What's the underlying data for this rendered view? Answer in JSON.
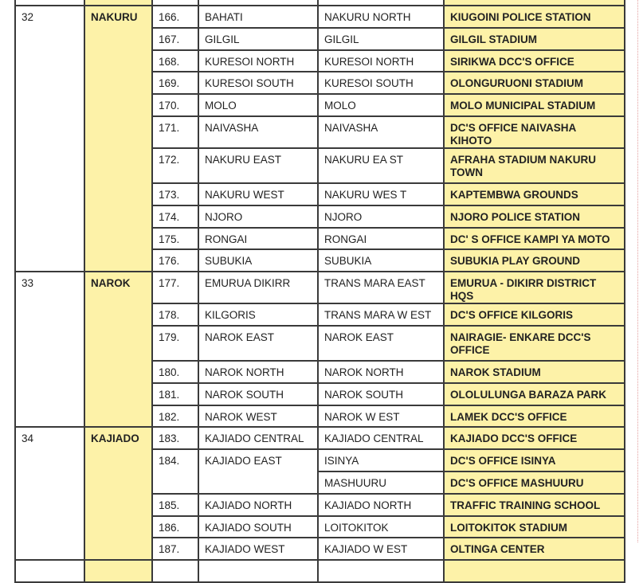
{
  "colors": {
    "highlight": "#fdf2a8",
    "border": "#3a3a3a"
  },
  "counties": [
    {
      "code": "32",
      "name": "NAKURU",
      "rows": [
        {
          "no": "166.",
          "constituency": "BAHATI",
          "sub": [
            {
              "name": "NAKURU NORTH",
              "centre": "KIUGOINI POLICE STATION"
            }
          ]
        },
        {
          "no": "167.",
          "constituency": "GILGIL",
          "sub": [
            {
              "name": "GILGIL",
              "centre": "GILGIL STADIUM"
            }
          ]
        },
        {
          "no": "168.",
          "constituency": "KURESOI NORTH",
          "sub": [
            {
              "name": "KURESOI NORTH",
              "centre": "SIRIKWA DCC'S OFFICE"
            }
          ]
        },
        {
          "no": "169.",
          "constituency": "KURESOI SOUTH",
          "sub": [
            {
              "name": "KURESOI SOUTH",
              "centre": "OLONGURUONI STADIUM"
            }
          ]
        },
        {
          "no": "170.",
          "constituency": "MOLO",
          "sub": [
            {
              "name": "MOLO",
              "centre": "MOLO MUNICIPAL STADIUM"
            }
          ]
        },
        {
          "no": "171.",
          "constituency": "NAIVASHA",
          "sub": [
            {
              "name": "NAIVASHA",
              "centre": "DC'S OFFICE NAIVASHA KIHOTO"
            }
          ]
        },
        {
          "no": "172.",
          "constituency": "NAKURU EAST",
          "sub": [
            {
              "name": "NAKURU EA ST",
              "centre": "AFRAHA STADIUM NAKURU TOWN",
              "double": true
            }
          ]
        },
        {
          "no": "173.",
          "constituency": "NAKURU WEST",
          "sub": [
            {
              "name": "NAKURU WES T",
              "centre": "KAPTEMBWA GROUNDS"
            }
          ]
        },
        {
          "no": "174.",
          "constituency": "NJORO",
          "sub": [
            {
              "name": "NJORO",
              "centre": "NJORO POLICE STATION"
            }
          ]
        },
        {
          "no": "175.",
          "constituency": "RONGAI",
          "sub": [
            {
              "name": "RONGAI",
              "centre": "DC' S OFFICE KAMPI YA MOTO"
            }
          ]
        },
        {
          "no": "176.",
          "constituency": "SUBUKIA",
          "sub": [
            {
              "name": "SUBUKIA",
              "centre": "SUBUKIA PLAY GROUND"
            }
          ]
        }
      ]
    },
    {
      "code": "33",
      "name": "NAROK",
      "rows": [
        {
          "no": "177.",
          "constituency": "EMURUA DIKIRR",
          "sub": [
            {
              "name": "TRANS  MARA EAST",
              "centre": "EMURUA - DIKIRR DISTRICT HQS"
            }
          ]
        },
        {
          "no": "178.",
          "constituency": "KILGORIS",
          "sub": [
            {
              "name": "TRANS  MARA W EST",
              "centre": "DC'S OFFICE KILGORIS"
            }
          ]
        },
        {
          "no": "179.",
          "constituency": "NAROK EAST",
          "sub": [
            {
              "name": "NAROK EAST",
              "centre": "NAIRAGIE- ENKARE DCC'S OFFICE",
              "double": true
            }
          ]
        },
        {
          "no": "180.",
          "constituency": "NAROK NORTH",
          "sub": [
            {
              "name": "NAROK NORTH",
              "centre": "NAROK STADIUM"
            }
          ]
        },
        {
          "no": "181.",
          "constituency": "NAROK SOUTH",
          "sub": [
            {
              "name": "NAROK SOUTH",
              "centre": "OLOLULUNGA BARAZA PARK"
            }
          ]
        },
        {
          "no": "182.",
          "constituency": "NAROK WEST",
          "sub": [
            {
              "name": "NAROK W EST",
              "centre": "LAMEK DCC'S OFFICE"
            }
          ]
        }
      ]
    },
    {
      "code": "34",
      "name": "KAJIADO",
      "rows": [
        {
          "no": "183.",
          "constituency": "KAJIADO CENTRAL",
          "sub": [
            {
              "name": "KAJIADO CENTRAL",
              "centre": "KAJIADO DCC'S OFFICE"
            }
          ]
        },
        {
          "no": "184.",
          "constituency": "KAJIADO EAST",
          "sub": [
            {
              "name": "ISINYA",
              "centre": "DC'S OFFICE ISINYA"
            },
            {
              "name": "MASHUURU",
              "centre": "DC'S OFFICE MASHUURU"
            }
          ]
        },
        {
          "no": "185.",
          "constituency": "KAJIADO NORTH",
          "sub": [
            {
              "name": "KAJIADO NORTH",
              "centre": "TRAFFIC TRAINING SCHOOL"
            }
          ]
        },
        {
          "no": "186.",
          "constituency": "KAJIADO SOUTH",
          "sub": [
            {
              "name": "LOITOKITOK",
              "centre": "LOITOKITOK STADIUM"
            }
          ]
        },
        {
          "no": "187.",
          "constituency": "KAJIADO WEST",
          "sub": [
            {
              "name": "KAJIADO W EST",
              "centre": "OLTINGA CENTER"
            }
          ]
        }
      ]
    }
  ]
}
